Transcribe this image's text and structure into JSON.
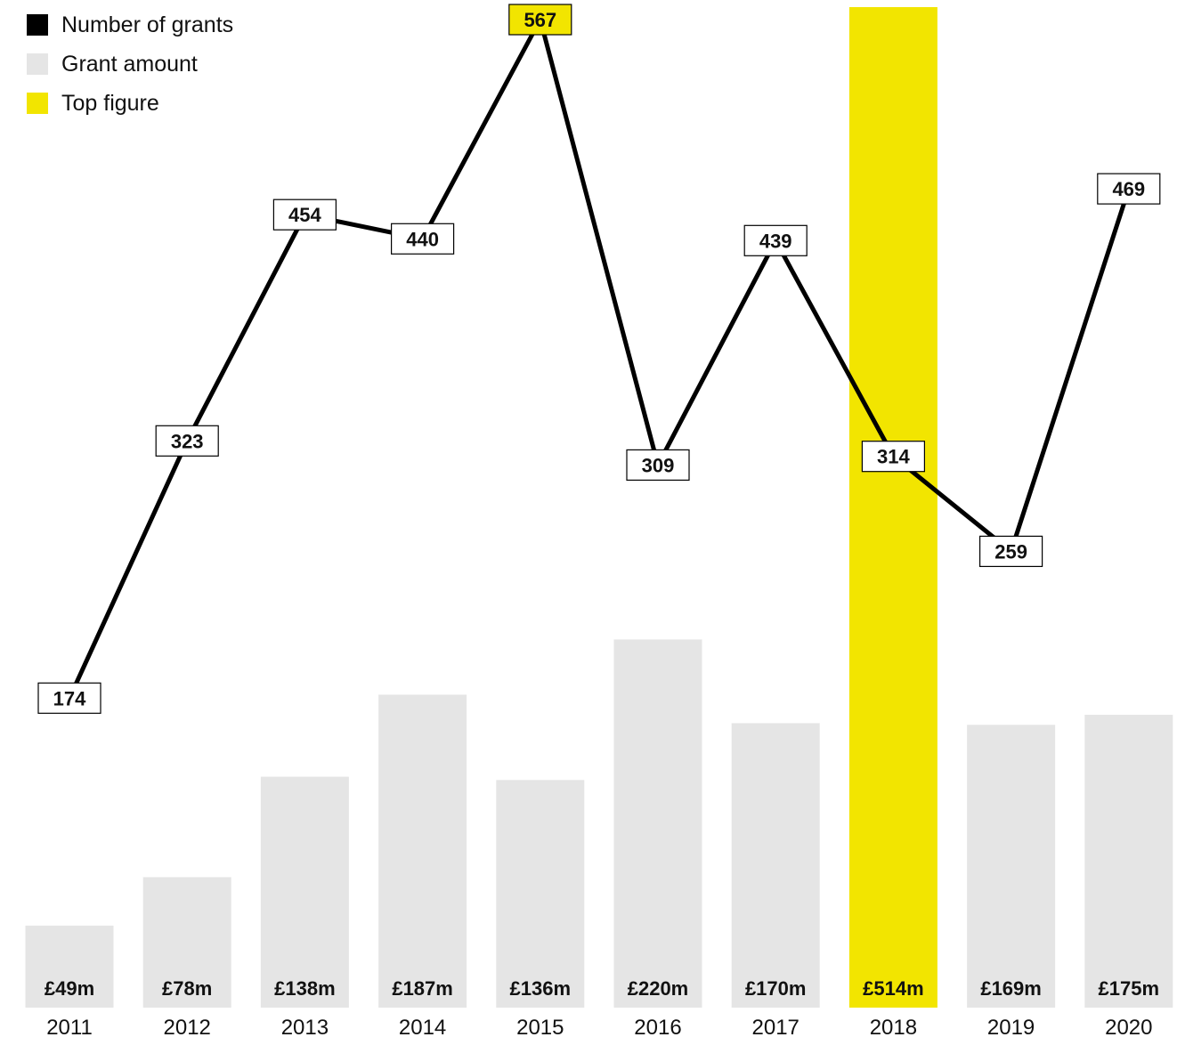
{
  "legend": [
    {
      "label": "Number of grants",
      "color": "#000000"
    },
    {
      "label": "Grant amount",
      "color": "#e5e5e5"
    },
    {
      "label": "Top figure",
      "color": "#f2e500"
    }
  ],
  "colors": {
    "bar": "#e5e5e5",
    "highlight": "#f2e500",
    "line": "#000000",
    "text": "#111111"
  },
  "chart_data": {
    "type": "bar+line",
    "categories": [
      "2011",
      "2012",
      "2013",
      "2014",
      "2015",
      "2016",
      "2017",
      "2018",
      "2019",
      "2020"
    ],
    "series": [
      {
        "name": "Grant amount",
        "type": "bar",
        "values": [
          49,
          78,
          138,
          187,
          136,
          220,
          170,
          514,
          169,
          175
        ],
        "labels": [
          "£49m",
          "£78m",
          "£138m",
          "£187m",
          "£136m",
          "£220m",
          "£170m",
          "£514m",
          "£169m",
          "£175m"
        ],
        "highlight_index": 7
      },
      {
        "name": "Number of grants",
        "type": "line",
        "values": [
          174,
          323,
          454,
          440,
          567,
          309,
          439,
          314,
          259,
          469
        ],
        "highlight_index": 4
      }
    ],
    "grid": false,
    "legend_position": "top-left"
  }
}
